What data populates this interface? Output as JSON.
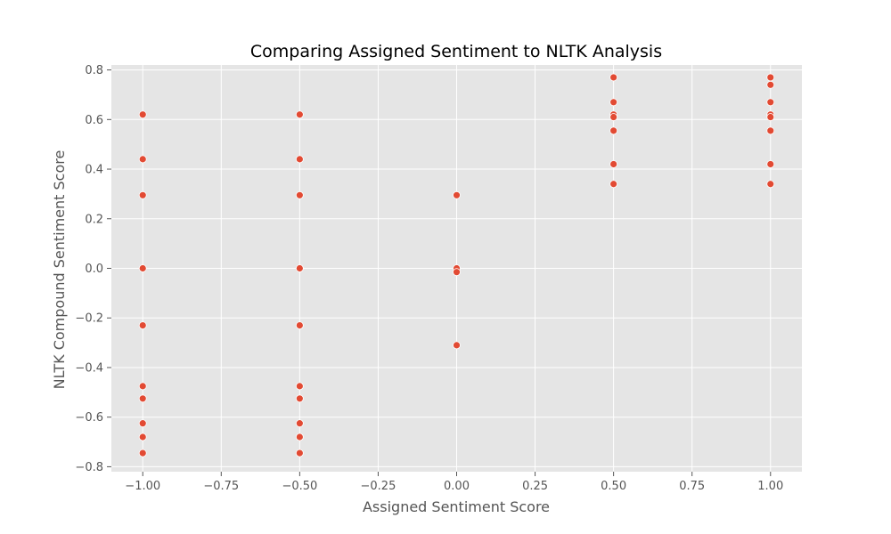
{
  "chart_data": {
    "type": "scatter",
    "title": "Comparing Assigned Sentiment to NLTK Analysis",
    "xlabel": "Assigned Sentiment Score",
    "ylabel": "NLTK Compound Sentiment Score",
    "xlim": [
      -1.1,
      1.1
    ],
    "ylim": [
      -0.82,
      0.82
    ],
    "xticks": [
      -1.0,
      -0.75,
      -0.5,
      -0.25,
      0.0,
      0.25,
      0.5,
      0.75,
      1.0
    ],
    "xtick_labels": [
      "−1.00",
      "−0.75",
      "−0.50",
      "−0.25",
      "0.00",
      "0.25",
      "0.50",
      "0.75",
      "1.00"
    ],
    "yticks": [
      -0.8,
      -0.6,
      -0.4,
      -0.2,
      0.0,
      0.2,
      0.4,
      0.6,
      0.8
    ],
    "ytick_labels": [
      "−0.8",
      "−0.6",
      "−0.4",
      "−0.2",
      "0.0",
      "0.2",
      "0.4",
      "0.6",
      "0.8"
    ],
    "grid": true,
    "marker_color": "#E24A33",
    "background_color": "#E5E5E5",
    "grid_color": "#FFFFFF",
    "points": [
      {
        "x": -1.0,
        "y": 0.62
      },
      {
        "x": -1.0,
        "y": 0.44
      },
      {
        "x": -1.0,
        "y": 0.295
      },
      {
        "x": -1.0,
        "y": 0.0
      },
      {
        "x": -1.0,
        "y": -0.23
      },
      {
        "x": -1.0,
        "y": -0.475
      },
      {
        "x": -1.0,
        "y": -0.525
      },
      {
        "x": -1.0,
        "y": -0.625
      },
      {
        "x": -1.0,
        "y": -0.68
      },
      {
        "x": -1.0,
        "y": -0.745
      },
      {
        "x": -0.5,
        "y": 0.62
      },
      {
        "x": -0.5,
        "y": 0.44
      },
      {
        "x": -0.5,
        "y": 0.295
      },
      {
        "x": -0.5,
        "y": 0.0
      },
      {
        "x": -0.5,
        "y": -0.23
      },
      {
        "x": -0.5,
        "y": -0.475
      },
      {
        "x": -0.5,
        "y": -0.525
      },
      {
        "x": -0.5,
        "y": -0.625
      },
      {
        "x": -0.5,
        "y": -0.68
      },
      {
        "x": -0.5,
        "y": -0.745
      },
      {
        "x": 0.0,
        "y": 0.295
      },
      {
        "x": 0.0,
        "y": 0.0
      },
      {
        "x": 0.0,
        "y": -0.015
      },
      {
        "x": 0.0,
        "y": -0.31
      },
      {
        "x": 0.5,
        "y": 0.77
      },
      {
        "x": 0.5,
        "y": 0.67
      },
      {
        "x": 0.5,
        "y": 0.62
      },
      {
        "x": 0.5,
        "y": 0.61
      },
      {
        "x": 0.5,
        "y": 0.555
      },
      {
        "x": 0.5,
        "y": 0.42
      },
      {
        "x": 0.5,
        "y": 0.34
      },
      {
        "x": 1.0,
        "y": 0.77
      },
      {
        "x": 1.0,
        "y": 0.74
      },
      {
        "x": 1.0,
        "y": 0.67
      },
      {
        "x": 1.0,
        "y": 0.62
      },
      {
        "x": 1.0,
        "y": 0.61
      },
      {
        "x": 1.0,
        "y": 0.555
      },
      {
        "x": 1.0,
        "y": 0.42
      },
      {
        "x": 1.0,
        "y": 0.34
      }
    ]
  }
}
